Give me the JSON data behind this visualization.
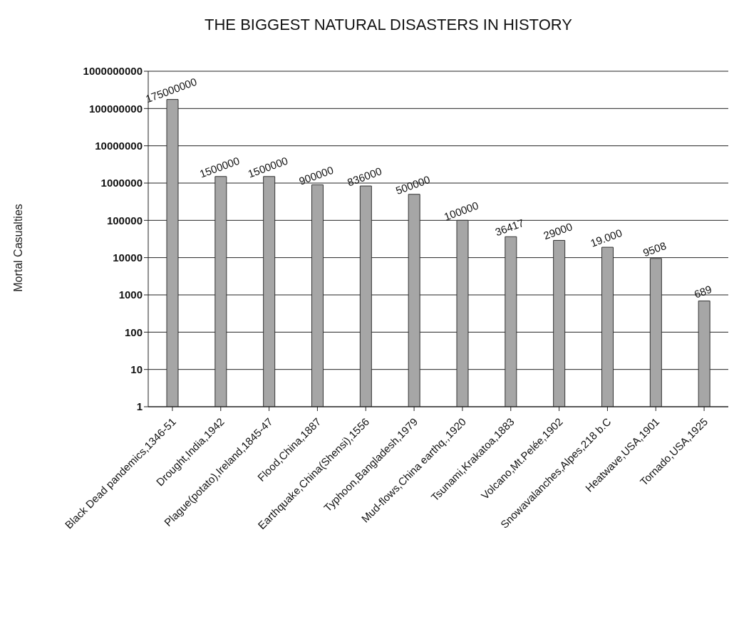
{
  "chart_data": {
    "type": "bar",
    "title": "THE BIGGEST NATURAL DISASTERS IN HISTORY",
    "ylabel": "Mortal Casualties",
    "categories": [
      "Black Dead pandemics,1346-51",
      "Drought,India,1942",
      "Plague(potato),Ireland,1845-47",
      "Flood,China,1887",
      "Earthquake,China(Shensi),1556",
      "Typhoon,Bangladesh,1979",
      "Mud-flows,China earthq.,1920",
      "Tsunami,Krakatoa,1883",
      "Volcano,Mt.Pelée,1902",
      "Snowavalanches,Alpes,218 b.C",
      "Heatwave,USA,1901",
      "Tornado,USA,1925"
    ],
    "values": [
      175000000,
      1500000,
      1500000,
      900000,
      836000,
      500000,
      100000,
      36417,
      29000,
      19000,
      9508,
      689
    ],
    "value_labels": [
      "175000000",
      "1500000",
      "1500000",
      "900000",
      "836000",
      "500000",
      "100000",
      "36417",
      "29000",
      "19.000",
      "9508",
      "689"
    ],
    "color": "#a6a6a6",
    "log": "y",
    "ylim": [
      1,
      1000000000
    ],
    "yticks": [
      1,
      10,
      100,
      1000,
      10000,
      100000,
      1000000,
      10000000,
      100000000,
      1000000000
    ],
    "grid": "y"
  }
}
